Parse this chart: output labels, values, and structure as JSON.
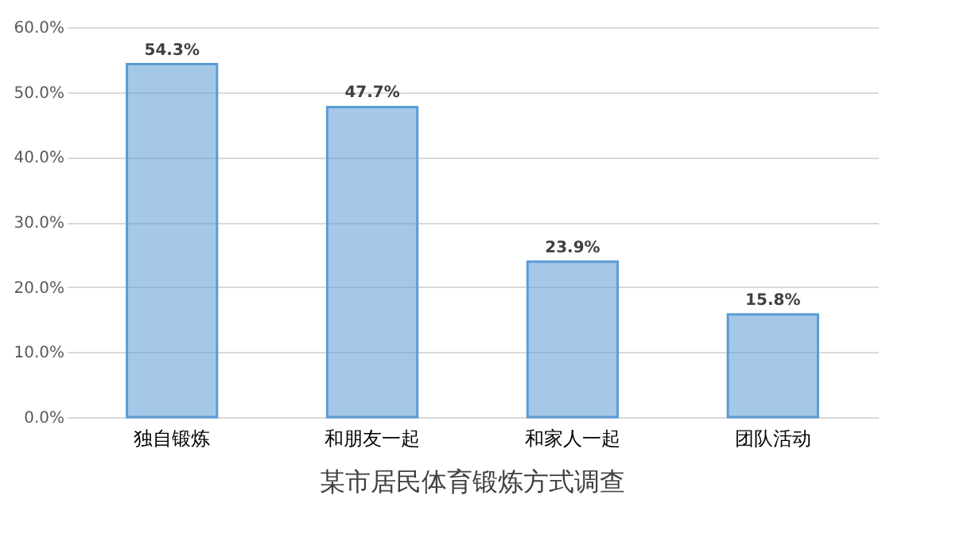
{
  "chart_data": {
    "type": "bar",
    "title": "某市居民体育锻炼方式调查",
    "categories": [
      "独自锻炼",
      "和朋友一起",
      "和家人一起",
      "团队活动"
    ],
    "values": [
      54.3,
      47.7,
      23.9,
      15.8
    ],
    "value_labels": [
      "54.3%",
      "47.7%",
      "23.9%",
      "15.8%"
    ],
    "color": "#5b9bd5",
    "ylim": [
      0,
      60
    ],
    "yticks": [
      {
        "value": 0,
        "label": "0.0%"
      },
      {
        "value": 10,
        "label": "10.0%"
      },
      {
        "value": 20,
        "label": "20.0%"
      },
      {
        "value": 30,
        "label": "30.0%"
      },
      {
        "value": 40,
        "label": "40.0%"
      },
      {
        "value": 50,
        "label": "50.0%"
      },
      {
        "value": 60,
        "label": "60.0%"
      }
    ],
    "grid": "y"
  }
}
